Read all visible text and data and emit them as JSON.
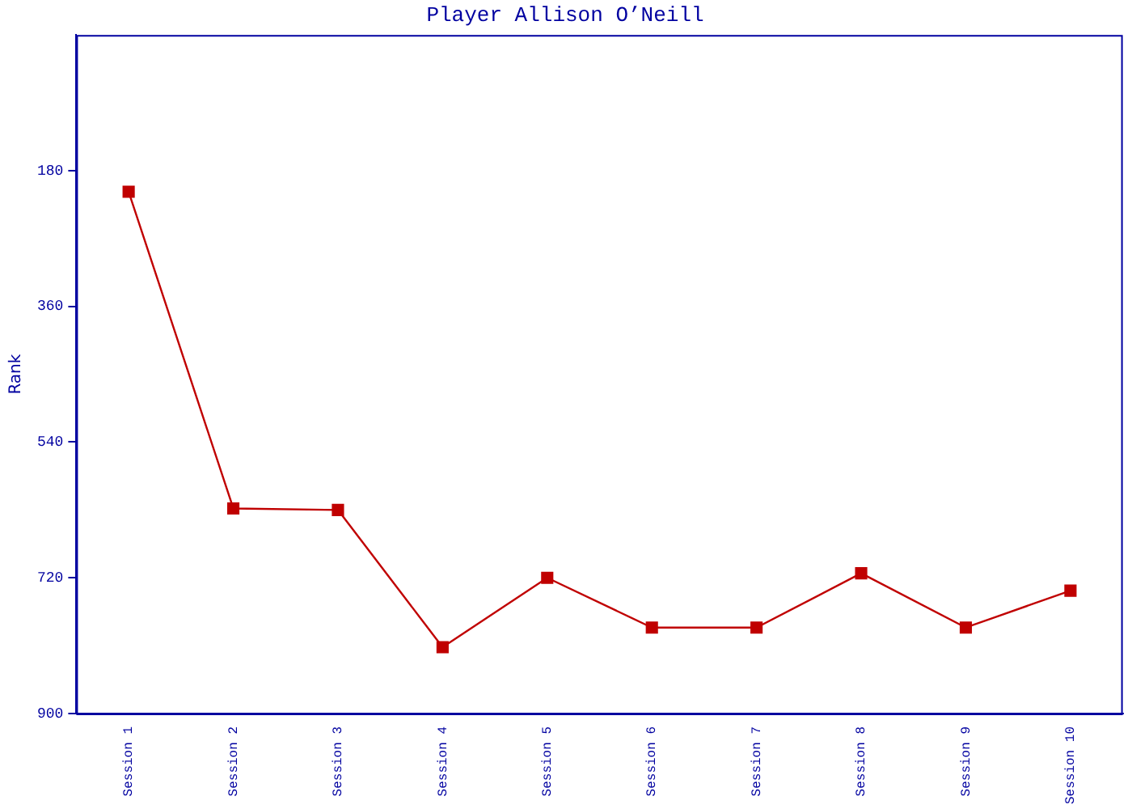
{
  "chart_data": {
    "type": "line",
    "title": "Player Allison O’Neill",
    "ylabel": "Rank",
    "categories": [
      "Session 1",
      "Session 2",
      "Session 3",
      "Session 4",
      "Session 5",
      "Session 6",
      "Session 7",
      "Session 8",
      "Session 9",
      "Session 10"
    ],
    "series": [
      {
        "color": "#c00000",
        "values": [
          208,
          628,
          630,
          812,
          720,
          786,
          786,
          714,
          786,
          737
        ]
      }
    ],
    "ylim": [
      900,
      0
    ],
    "yticks": [
      180,
      360,
      540,
      720,
      900
    ],
    "grid": false,
    "legend": false,
    "marker": "square",
    "line_style": "solid"
  }
}
